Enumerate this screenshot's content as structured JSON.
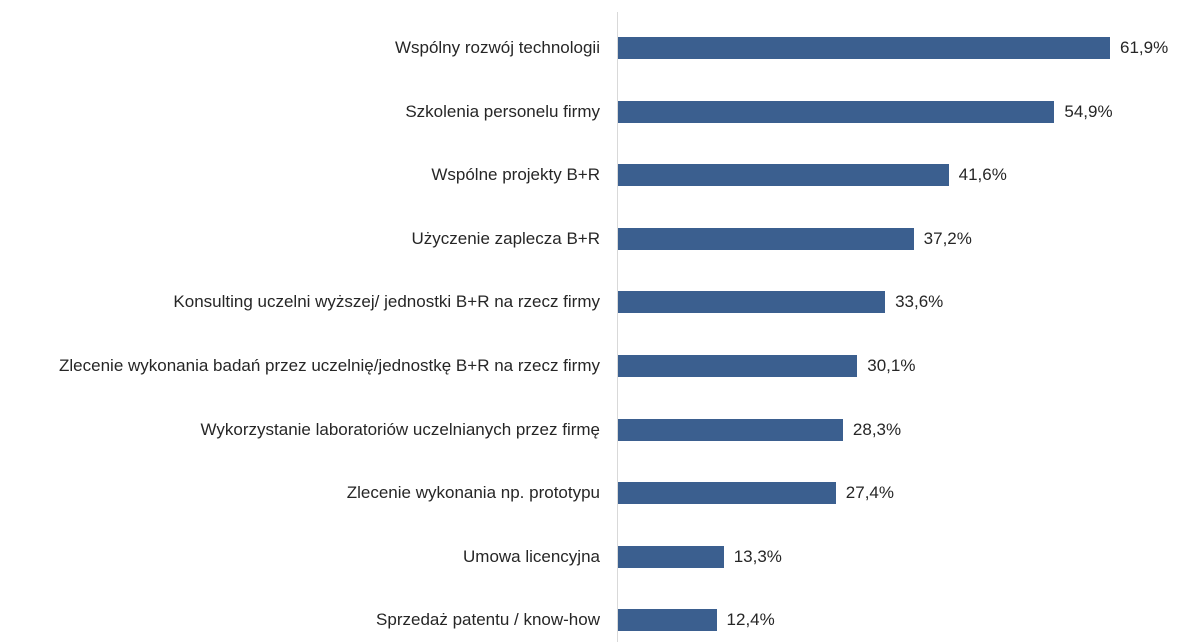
{
  "chart_data": {
    "type": "bar",
    "orientation": "horizontal",
    "color": "#3b5f8f",
    "categories": [
      "Wspólny rozwój technologii",
      "Szkolenia personelu firmy",
      "Wspólne projekty B+R",
      "Użyczenie zaplecza B+R",
      "Konsulting uczelni wyższej/ jednostki B+R na rzecz firmy",
      "Zlecenie wykonania badań przez uczelnię/jednostkę B+R na rzecz firmy",
      "Wykorzystanie laboratoriów uczelnianych przez firmę",
      "Zlecenie wykonania np. prototypu",
      "Umowa licencyjna",
      "Sprzedaż patentu / know-how"
    ],
    "values": [
      61.9,
      54.9,
      41.6,
      37.2,
      33.6,
      30.1,
      28.3,
      27.4,
      13.3,
      12.4
    ],
    "value_labels": [
      "61,9%",
      "54,9%",
      "41,6%",
      "37,2%",
      "33,6%",
      "30,1%",
      "28,3%",
      "27,4%",
      "13,3%",
      "12,4%"
    ]
  }
}
